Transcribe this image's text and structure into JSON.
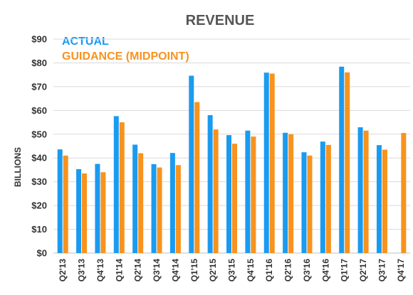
{
  "colors": {
    "actual": "#1a9bf0",
    "guidance": "#f7931e",
    "title": "#555555"
  },
  "chart_data": {
    "type": "bar",
    "title": "REVENUE",
    "ylabel": "BILLIONS",
    "xlabel": "",
    "ylim": [
      0,
      90
    ],
    "yticks": [
      0,
      10,
      20,
      30,
      40,
      50,
      60,
      70,
      80,
      90
    ],
    "ytick_labels": [
      "$0",
      "$10",
      "$20",
      "$30",
      "$40",
      "$50",
      "$60",
      "$70",
      "$80",
      "$90"
    ],
    "grid": true,
    "legend": "top-left",
    "categories": [
      "Q2'13",
      "Q3'13",
      "Q4'13",
      "Q1'14",
      "Q2'14",
      "Q3'14",
      "Q4'14",
      "Q1'15",
      "Q2'15",
      "Q3'15",
      "Q4'15",
      "Q1'16",
      "Q2'16",
      "Q3'16",
      "Q4'16",
      "Q1'17",
      "Q2'17",
      "Q3'17",
      "Q4'17"
    ],
    "series": [
      {
        "name": "ACTUAL",
        "values": [
          43.6,
          35.3,
          37.5,
          57.6,
          45.6,
          37.4,
          42.1,
          74.6,
          58.0,
          49.6,
          51.5,
          75.9,
          50.6,
          42.4,
          46.9,
          78.4,
          52.9,
          45.4,
          null
        ]
      },
      {
        "name": "GUIDANCE (MIDPOINT)",
        "values": [
          41.0,
          33.5,
          34.0,
          55.0,
          42.0,
          36.0,
          37.0,
          63.5,
          52.0,
          46.0,
          49.0,
          75.5,
          50.0,
          41.0,
          45.5,
          76.0,
          51.5,
          43.5,
          50.5
        ]
      }
    ]
  }
}
